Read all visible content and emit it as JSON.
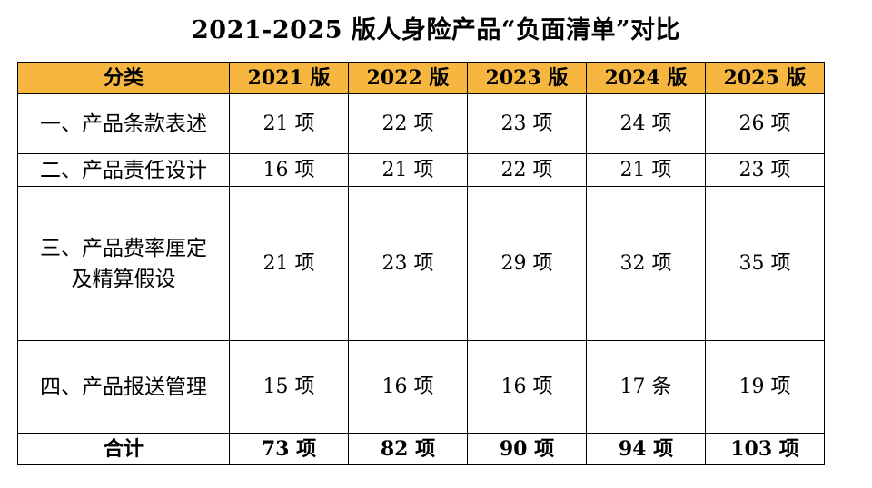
{
  "title": "2021-2025 版人身险产品“负面清单”对比",
  "table": {
    "headers": [
      "分类",
      "2021 版",
      "2022 版",
      "2023 版",
      "2024 版",
      "2025 版"
    ],
    "rows": [
      {
        "category": "一、产品条款表述",
        "values": [
          "21 项",
          "22 项",
          "23 项",
          "24 项",
          "26 项"
        ]
      },
      {
        "category": "二、产品责任设计",
        "values": [
          "16 项",
          "21 项",
          "22 项",
          "21 项",
          "23 项"
        ]
      },
      {
        "category_line1": "三、产品费率厘定",
        "category_line2": "及精算假设",
        "values": [
          "21 项",
          "23 项",
          "29 项",
          "32 项",
          "35 项"
        ]
      },
      {
        "category": "四、产品报送管理",
        "values": [
          "15 项",
          "16 项",
          "16 项",
          "17 条",
          "19 项"
        ]
      }
    ],
    "total": {
      "label": "合计",
      "values": [
        "73 项",
        "82 项",
        "90 项",
        "94 项",
        "103 项"
      ]
    }
  },
  "colors": {
    "header_bg": "#f6b63f",
    "border": "#000000"
  }
}
